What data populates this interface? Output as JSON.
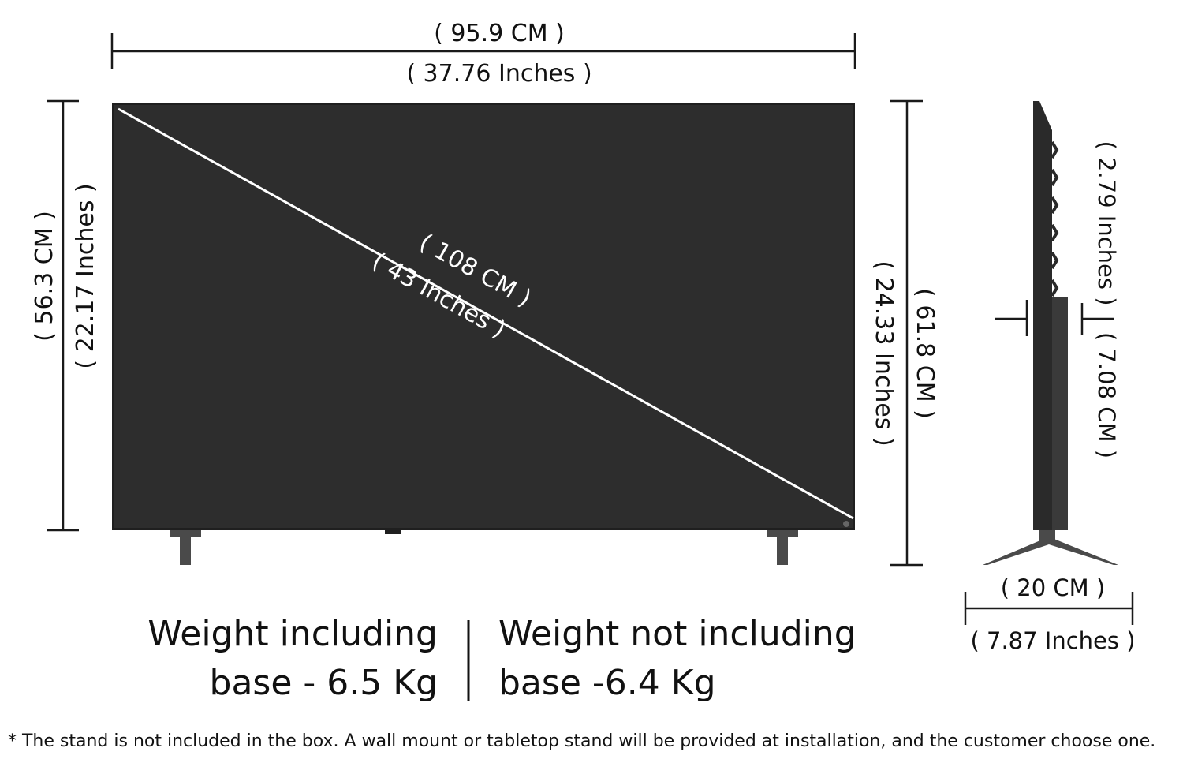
{
  "colors": {
    "screen": "#2d2d2d",
    "bezel": "#1f1f1f",
    "stand": "#4a4a4a",
    "line": "#1a1a1a",
    "diagonal": "#ffffff"
  },
  "front": {
    "width_cm": "( 95.9 CM )",
    "width_in": "( 37.76 Inches )",
    "height_cm": "( 56.3 CM )",
    "height_in": "( 22.17  Inches )",
    "diag_cm": "( 108 CM )",
    "diag_in": "( 43 Inches )",
    "total_height_in": "( 24.33  Inches )",
    "total_height_cm": "( 61.8 CM )"
  },
  "side": {
    "depth_in": "( 2.79  Inches )",
    "depth_cm": "( 7.08 CM )",
    "stand_cm": "( 20 CM )",
    "stand_in": "( 7.87 Inches )"
  },
  "weights": {
    "with_base_line1": "Weight including",
    "with_base_line2": "base - 6.5 Kg",
    "without_base_line1": "Weight not including",
    "without_base_line2": "base -6.4 Kg"
  },
  "footnote": "* The stand is not included in the box. A wall mount or tabletop stand will be provided at installation, and the customer choose one."
}
